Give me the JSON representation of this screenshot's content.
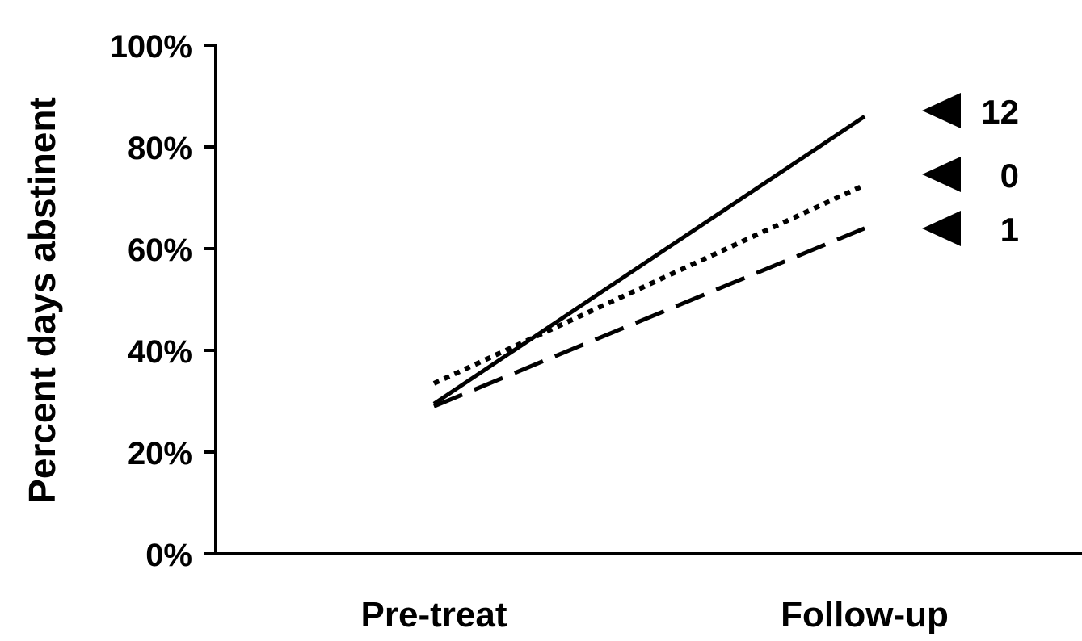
{
  "chart_data": {
    "type": "line",
    "title": "",
    "xlabel": "",
    "ylabel": "Percent days abstinent",
    "categories": [
      "Pre-treat",
      "Follow-up"
    ],
    "y_ticks": [
      "0%",
      "20%",
      "40%",
      "60%",
      "80%",
      "100%"
    ],
    "ylim": [
      0,
      100
    ],
    "grid": false,
    "series": [
      {
        "name": "12",
        "values": [
          29.5,
          86
        ],
        "style": "solid"
      },
      {
        "name": "0",
        "values": [
          33.5,
          72.5
        ],
        "style": "dotted"
      },
      {
        "name": "1",
        "values": [
          29,
          64
        ],
        "style": "dashed"
      }
    ],
    "end_labels": [
      "12",
      "0",
      "1"
    ]
  }
}
